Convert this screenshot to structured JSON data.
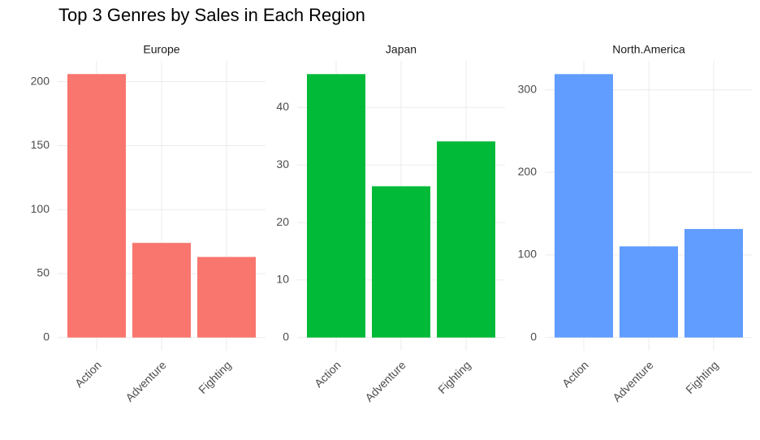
{
  "title": "Top 3 Genres by Sales in Each Region",
  "chart_data": [
    {
      "type": "bar",
      "title": "Europe",
      "categories": [
        "Action",
        "Adventure",
        "Fighting"
      ],
      "values": [
        206,
        74,
        63
      ],
      "color": "#F8766D",
      "ylim": [
        -10.3,
        216.3
      ],
      "yticks": [
        0,
        50,
        100,
        150,
        200
      ],
      "grid": true
    },
    {
      "type": "bar",
      "title": "Japan",
      "categories": [
        "Action",
        "Adventure",
        "Fighting"
      ],
      "values": [
        45.8,
        26.3,
        34.1
      ],
      "color": "#00BA38",
      "ylim": [
        -2.29,
        48.1
      ],
      "yticks": [
        0,
        10,
        20,
        30,
        40
      ],
      "grid": true
    },
    {
      "type": "bar",
      "title": "North.America",
      "categories": [
        "Action",
        "Adventure",
        "Fighting"
      ],
      "values": [
        319,
        110.4,
        131.4
      ],
      "color": "#619CFF",
      "ylim": [
        -16,
        335
      ],
      "yticks": [
        0,
        100,
        200,
        300
      ],
      "grid": true
    }
  ]
}
